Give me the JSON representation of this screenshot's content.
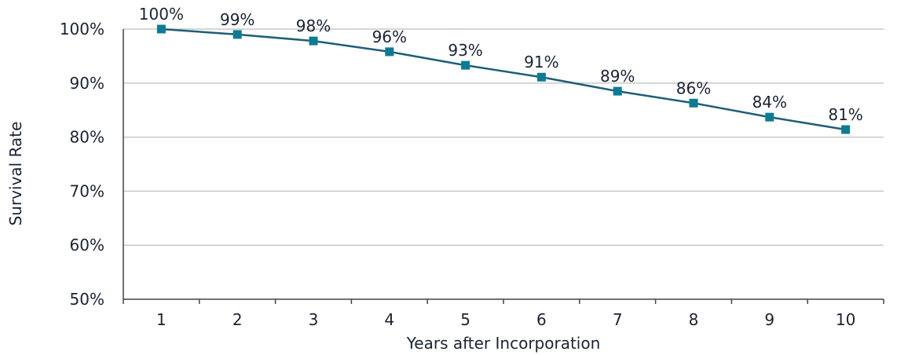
{
  "chart_data": {
    "type": "line",
    "title": "",
    "xlabel": "Years after Incorporation",
    "ylabel": "Survival Rate",
    "x": [
      1,
      2,
      3,
      4,
      5,
      6,
      7,
      8,
      9,
      10
    ],
    "x_tick_labels": [
      "1",
      "2",
      "3",
      "4",
      "5",
      "6",
      "7",
      "8",
      "9",
      "10"
    ],
    "series": [
      {
        "values": [
          100,
          99,
          97.8,
          95.8,
          93.3,
          91.1,
          88.5,
          86.3,
          83.7,
          81.4
        ],
        "data_labels": [
          "100%",
          "99%",
          "98%",
          "96%",
          "93%",
          "91%",
          "89%",
          "86%",
          "84%",
          "81%"
        ],
        "color": "#1f5f78",
        "marker": "square",
        "marker_color": "#0e7a93"
      }
    ],
    "ylim": [
      50,
      100
    ],
    "y_ticks": [
      50,
      60,
      70,
      80,
      90,
      100
    ],
    "y_tick_labels": [
      "50%",
      "60%",
      "70%",
      "80%",
      "90%",
      "100%"
    ],
    "grid": "horizontal",
    "legend": "none",
    "colors": {
      "grid": "#c9c9c9",
      "axis": "#444444",
      "text": "#1a2332"
    }
  }
}
